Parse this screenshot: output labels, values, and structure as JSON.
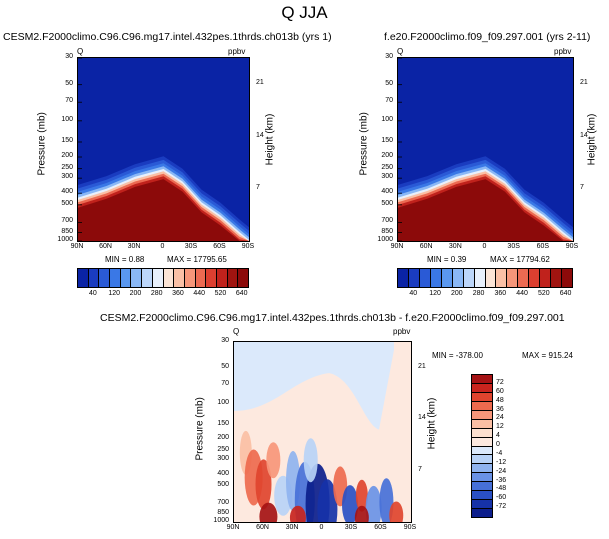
{
  "figure_title": "Q JJA",
  "colors": {
    "model_deep_blue": "#0a23a5",
    "model_dark_red": "#8c0a0a",
    "diff_neutral_light": "#dbe9fb",
    "diff_neutral_peach": "#fde9df"
  },
  "chart_data": [
    {
      "type": "heatmap",
      "id": "top-left",
      "title": "CESM2.F2000climo.C96.C96.mg17.intel.432pes.1thrds.ch013b (yrs 1)",
      "var_label": "Q",
      "units": "ppbv",
      "ylabel": "Pressure (mb)",
      "y2label": "Height (km)",
      "x_ticks": [
        "90N",
        "60N",
        "30N",
        "0",
        "30S",
        "60S",
        "90S"
      ],
      "x_values": [
        90,
        60,
        30,
        0,
        -30,
        -60,
        -90
      ],
      "y_ticks": [
        "30",
        "50",
        "70",
        "100",
        "150",
        "200",
        "250",
        "300",
        "400",
        "500",
        "700",
        "850",
        "1000"
      ],
      "y_values": [
        30,
        50,
        70,
        100,
        150,
        200,
        250,
        300,
        400,
        500,
        700,
        850,
        1000
      ],
      "y2_ticks": [
        "21",
        "14",
        "7"
      ],
      "y2_values": [
        21,
        14,
        7
      ],
      "tropopause_pressure": {
        "lat": [
          90,
          60,
          30,
          0,
          -20,
          -40,
          -60,
          -80,
          -90
        ],
        "p": [
          320,
          270,
          215,
          185,
          235,
          350,
          450,
          620,
          720
        ]
      },
      "min_label": "MIN =   0.88",
      "max_label": "MAX = 17795.65",
      "min": 0.88,
      "max": 17795.65,
      "colorbar": {
        "labels": [
          "40",
          "120",
          "200",
          "280",
          "360",
          "440",
          "520",
          "640"
        ],
        "levels": [
          40,
          80,
          120,
          160,
          200,
          240,
          280,
          320,
          360,
          400,
          440,
          480,
          520,
          560,
          640
        ],
        "colors": [
          "#0a23a5",
          "#1a3cc0",
          "#2a5ad6",
          "#3a78e6",
          "#5a98f0",
          "#8ab8f6",
          "#bcd6fa",
          "#e8f0fc",
          "#fbe4d6",
          "#fac0a6",
          "#f6967a",
          "#ec6a52",
          "#dc3f30",
          "#c0221c",
          "#a01410",
          "#8c0a0a"
        ]
      }
    },
    {
      "type": "heatmap",
      "id": "top-right",
      "title": "f.e20.F2000climo.f09_f09.297.001 (yrs 2-11)",
      "var_label": "Q",
      "units": "ppbv",
      "ylabel": "Pressure (mb)",
      "y2label": "Height (km)",
      "x_ticks": [
        "90N",
        "60N",
        "30N",
        "0",
        "30S",
        "60S",
        "90S"
      ],
      "x_values": [
        90,
        60,
        30,
        0,
        -30,
        -60,
        -90
      ],
      "y_ticks": [
        "30",
        "50",
        "70",
        "100",
        "150",
        "200",
        "250",
        "300",
        "400",
        "500",
        "700",
        "850",
        "1000"
      ],
      "y_values": [
        30,
        50,
        70,
        100,
        150,
        200,
        250,
        300,
        400,
        500,
        700,
        850,
        1000
      ],
      "y2_ticks": [
        "21",
        "14",
        "7"
      ],
      "y2_values": [
        21,
        14,
        7
      ],
      "tropopause_pressure": {
        "lat": [
          90,
          60,
          30,
          0,
          -20,
          -40,
          -60,
          -80,
          -90
        ],
        "p": [
          320,
          270,
          215,
          185,
          235,
          350,
          450,
          620,
          720
        ]
      },
      "min_label": "MIN =   0.39",
      "max_label": "MAX = 17794.62",
      "min": 0.39,
      "max": 17794.62,
      "colorbar": {
        "labels": [
          "40",
          "120",
          "200",
          "280",
          "360",
          "440",
          "520",
          "640"
        ],
        "levels": [
          40,
          80,
          120,
          160,
          200,
          240,
          280,
          320,
          360,
          400,
          440,
          480,
          520,
          560,
          640
        ],
        "colors": [
          "#0a23a5",
          "#1a3cc0",
          "#2a5ad6",
          "#3a78e6",
          "#5a98f0",
          "#8ab8f6",
          "#bcd6fa",
          "#e8f0fc",
          "#fbe4d6",
          "#fac0a6",
          "#f6967a",
          "#ec6a52",
          "#dc3f30",
          "#c0221c",
          "#a01410",
          "#8c0a0a"
        ]
      }
    },
    {
      "type": "heatmap",
      "id": "bottom-diff",
      "title": "CESM2.F2000climo.C96.C96.mg17.intel.432pes.1thrds.ch013b - f.e20.F2000climo.f09_f09.297.001",
      "var_label": "Q",
      "units": "ppbv",
      "ylabel": "Pressure (mb)",
      "y2label": "Height (km)",
      "x_ticks": [
        "90N",
        "60N",
        "30N",
        "0",
        "30S",
        "60S",
        "90S"
      ],
      "x_values": [
        90,
        60,
        30,
        0,
        -30,
        -60,
        -90
      ],
      "y_ticks": [
        "30",
        "50",
        "70",
        "100",
        "150",
        "200",
        "250",
        "300",
        "400",
        "500",
        "700",
        "850",
        "1000"
      ],
      "y_values": [
        30,
        50,
        70,
        100,
        150,
        200,
        250,
        300,
        400,
        500,
        700,
        850,
        1000
      ],
      "y2_ticks": [
        "21",
        "14",
        "7"
      ],
      "y2_values": [
        21,
        14,
        7
      ],
      "min_label": "MIN = -378.00",
      "max_label": "MAX = 915.24",
      "min": -378.0,
      "max": 915.24,
      "colorbar": {
        "labels": [
          "72",
          "60",
          "48",
          "36",
          "24",
          "12",
          "4",
          "0",
          "-4",
          "-12",
          "-24",
          "-36",
          "-48",
          "-60",
          "-72"
        ],
        "colors": [
          "#a51214",
          "#c8241e",
          "#e0442e",
          "#ee6a4e",
          "#f7967a",
          "#fbbfa4",
          "#fde0cf",
          "#fde9df",
          "#dbe9fb",
          "#b8d2f6",
          "#8fb3ef",
          "#6a92e6",
          "#4670d8",
          "#2a50c4",
          "#1632a8",
          "#0c1e8c"
        ]
      }
    }
  ]
}
